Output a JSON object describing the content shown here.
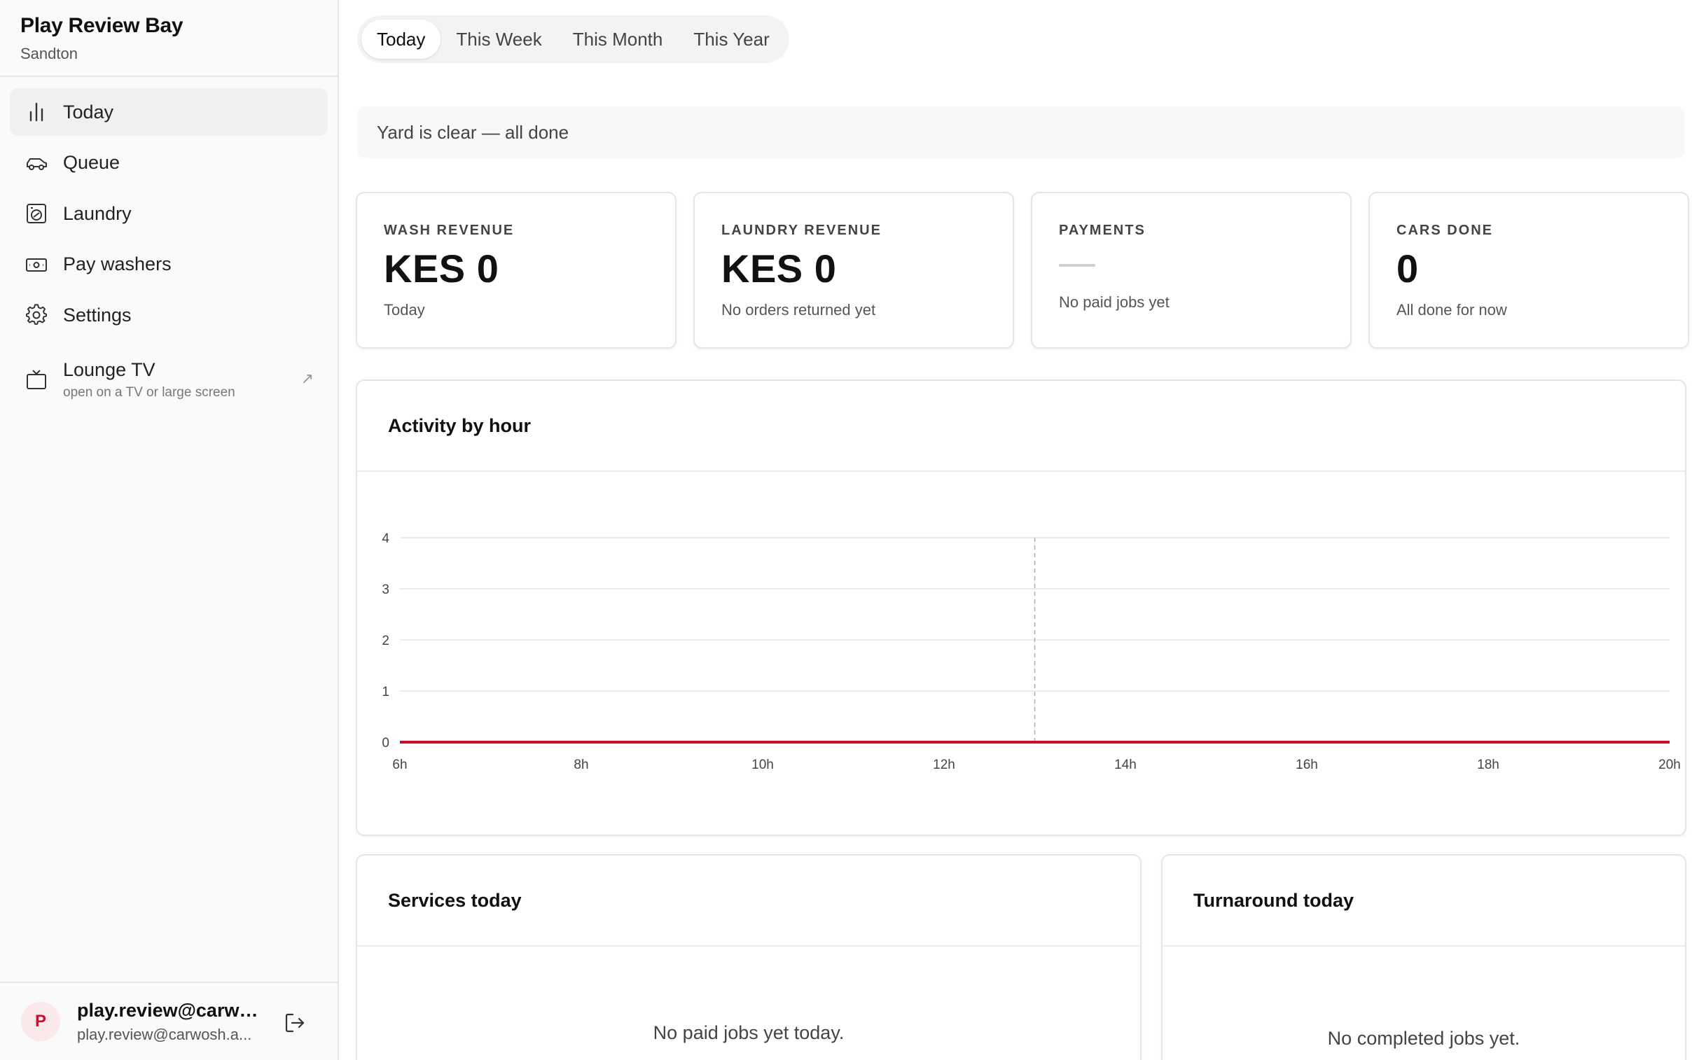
{
  "sidebar": {
    "brand_name": "Play Review Bay",
    "brand_location": "Sandton",
    "items": [
      {
        "label": "Today",
        "icon": "bar-chart-icon",
        "active": true
      },
      {
        "label": "Queue",
        "icon": "car-icon"
      },
      {
        "label": "Laundry",
        "icon": "washing-machine-icon"
      },
      {
        "label": "Pay washers",
        "icon": "banknote-icon"
      },
      {
        "label": "Settings",
        "icon": "gear-icon"
      }
    ],
    "lounge": {
      "label": "Lounge TV",
      "sublabel": "open on a TV or large screen",
      "icon": "tv-icon",
      "link_icon": "external-arrow-icon"
    },
    "user": {
      "initial": "P",
      "name": "play.review@carwo...",
      "email": "play.review@carwosh.a..."
    }
  },
  "period_tabs": {
    "items": [
      "Today",
      "This Week",
      "This Month",
      "This Year"
    ],
    "active": "Today"
  },
  "banner": "Yard is clear — all done",
  "kpis": [
    {
      "label": "WASH REVENUE",
      "value": "KES 0",
      "note": "Today"
    },
    {
      "label": "LAUNDRY REVENUE",
      "value": "KES 0",
      "note": "No orders returned yet"
    },
    {
      "label": "PAYMENTS",
      "value": "",
      "note": "No paid jobs yet"
    },
    {
      "label": "CARS DONE",
      "value": "0",
      "note": "All done for now"
    }
  ],
  "activity": {
    "title": "Activity by hour",
    "chart_data": {
      "type": "line",
      "title": "Activity by hour",
      "x": [
        6,
        7,
        8,
        9,
        10,
        11,
        12,
        13,
        14,
        15,
        16,
        17,
        18,
        19,
        20
      ],
      "x_tick_labels": [
        "6h",
        "8h",
        "10h",
        "12h",
        "14h",
        "16h",
        "18h",
        "20h"
      ],
      "x_ticks": [
        6,
        8,
        10,
        12,
        14,
        16,
        18,
        20
      ],
      "y_ticks": [
        0,
        1,
        2,
        3,
        4
      ],
      "xlim": [
        6,
        20
      ],
      "ylim": [
        0,
        4
      ],
      "current_hour_marker": 13,
      "series": [
        {
          "values": [
            0,
            0,
            0,
            0,
            0,
            0,
            0,
            0,
            0,
            0,
            0,
            0,
            0,
            0,
            0
          ],
          "color": "#c8102e"
        }
      ],
      "grid": true
    }
  },
  "services": {
    "title": "Services today",
    "empty": "No paid jobs yet today."
  },
  "turnaround": {
    "title": "Turnaround today",
    "empty": "No completed jobs yet."
  },
  "colors": {
    "accent": "#c8102e"
  }
}
